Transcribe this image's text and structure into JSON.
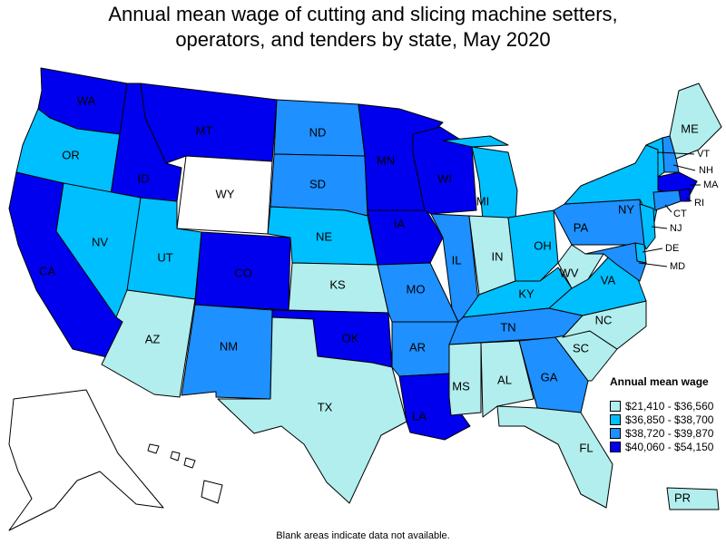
{
  "title": {
    "line1": "Annual mean wage of cutting and slicing machine setters,",
    "line2": "operators, and tenders by state, May 2020"
  },
  "legend": {
    "title": "Annual mean wage",
    "bins": [
      {
        "label": "$21,410 - $36,560",
        "color": "#b2eeee"
      },
      {
        "label": "$36,850 - $38,700",
        "color": "#00bfff"
      },
      {
        "label": "$38,720 - $39,870",
        "color": "#1e90ff"
      },
      {
        "label": "$40,060 - $54,150",
        "color": "#0000ee"
      }
    ]
  },
  "no_data_color": "#ffffff",
  "footnote": "Blank areas indicate data not available.",
  "states": [
    {
      "abbr": "WA",
      "bin": 3
    },
    {
      "abbr": "OR",
      "bin": 1
    },
    {
      "abbr": "CA",
      "bin": 3
    },
    {
      "abbr": "ID",
      "bin": 3
    },
    {
      "abbr": "NV",
      "bin": 1
    },
    {
      "abbr": "MT",
      "bin": 3
    },
    {
      "abbr": "WY",
      "bin": null
    },
    {
      "abbr": "UT",
      "bin": 1
    },
    {
      "abbr": "AZ",
      "bin": 0
    },
    {
      "abbr": "CO",
      "bin": 3
    },
    {
      "abbr": "NM",
      "bin": 2
    },
    {
      "abbr": "ND",
      "bin": 2
    },
    {
      "abbr": "SD",
      "bin": 2
    },
    {
      "abbr": "NE",
      "bin": 1
    },
    {
      "abbr": "KS",
      "bin": 0
    },
    {
      "abbr": "OK",
      "bin": 3
    },
    {
      "abbr": "TX",
      "bin": 0
    },
    {
      "abbr": "MN",
      "bin": 3
    },
    {
      "abbr": "IA",
      "bin": 3
    },
    {
      "abbr": "MO",
      "bin": 2
    },
    {
      "abbr": "AR",
      "bin": 2
    },
    {
      "abbr": "LA",
      "bin": 3
    },
    {
      "abbr": "WI",
      "bin": 3
    },
    {
      "abbr": "IL",
      "bin": 2
    },
    {
      "abbr": "MI",
      "bin": 1
    },
    {
      "abbr": "IN",
      "bin": 0
    },
    {
      "abbr": "OH",
      "bin": 1
    },
    {
      "abbr": "KY",
      "bin": 1
    },
    {
      "abbr": "TN",
      "bin": 2
    },
    {
      "abbr": "MS",
      "bin": 0
    },
    {
      "abbr": "AL",
      "bin": 0
    },
    {
      "abbr": "GA",
      "bin": 2
    },
    {
      "abbr": "FL",
      "bin": 0
    },
    {
      "abbr": "SC",
      "bin": 0
    },
    {
      "abbr": "NC",
      "bin": 0
    },
    {
      "abbr": "VA",
      "bin": 1
    },
    {
      "abbr": "WV",
      "bin": 0
    },
    {
      "abbr": "PA",
      "bin": 2
    },
    {
      "abbr": "NY",
      "bin": 1
    },
    {
      "abbr": "ME",
      "bin": 0
    },
    {
      "abbr": "VT",
      "bin": 1
    },
    {
      "abbr": "NH",
      "bin": 2
    },
    {
      "abbr": "MA",
      "bin": 3
    },
    {
      "abbr": "RI",
      "bin": 3
    },
    {
      "abbr": "CT",
      "bin": 2
    },
    {
      "abbr": "NJ",
      "bin": 1
    },
    {
      "abbr": "DE",
      "bin": 1
    },
    {
      "abbr": "MD",
      "bin": 2
    },
    {
      "abbr": "AK",
      "bin": null
    },
    {
      "abbr": "HI",
      "bin": null
    },
    {
      "abbr": "PR",
      "bin": 0
    }
  ]
}
